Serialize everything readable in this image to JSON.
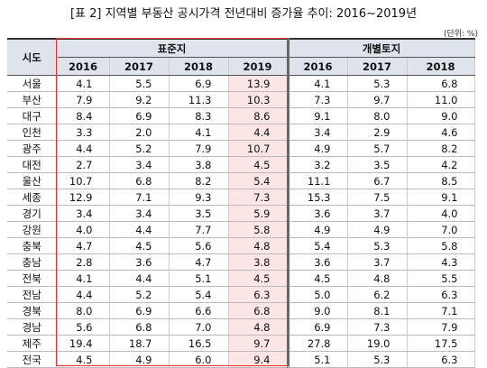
{
  "title": "[표 2] 지역별 부동산 공시가격 전년대비 증가율 추이: 2016~2019년",
  "unit": "(단위: %)",
  "table": {
    "header": {
      "region": "시도",
      "group1": "표준지",
      "group2": "개별토지",
      "years1": [
        "2016",
        "2017",
        "2018",
        "2019"
      ],
      "years2": [
        "2016",
        "2017",
        "2018"
      ]
    },
    "rows": [
      [
        "서울",
        "4.1",
        "5.5",
        "6.9",
        "13.9",
        "4.1",
        "5.3",
        "6.8"
      ],
      [
        "부산",
        "7.9",
        "9.2",
        "11.3",
        "10.3",
        "7.3",
        "9.7",
        "11.0"
      ],
      [
        "대구",
        "8.4",
        "6.9",
        "8.3",
        "8.6",
        "9.1",
        "8.0",
        "9.0"
      ],
      [
        "인천",
        "3.3",
        "2.0",
        "4.1",
        "4.4",
        "3.4",
        "2.9",
        "4.6"
      ],
      [
        "광주",
        "4.4",
        "5.2",
        "7.9",
        "10.7",
        "4.9",
        "5.7",
        "8.2"
      ],
      [
        "대전",
        "2.7",
        "3.4",
        "3.8",
        "4.5",
        "3.2",
        "3.5",
        "4.2"
      ],
      [
        "울산",
        "10.7",
        "6.8",
        "8.2",
        "5.4",
        "11.1",
        "6.7",
        "8.5"
      ],
      [
        "세종",
        "12.9",
        "7.1",
        "9.3",
        "7.3",
        "15.3",
        "7.5",
        "9.1"
      ],
      [
        "경기",
        "3.4",
        "3.4",
        "3.5",
        "5.9",
        "3.6",
        "3.7",
        "4.0"
      ],
      [
        "강원",
        "4.0",
        "4.4",
        "7.7",
        "5.8",
        "4.9",
        "4.9",
        "7.0"
      ],
      [
        "충북",
        "4.7",
        "4.5",
        "5.6",
        "4.8",
        "5.4",
        "5.3",
        "5.8"
      ],
      [
        "충남",
        "2.8",
        "3.6",
        "4.7",
        "3.8",
        "3.6",
        "3.7",
        "4.3"
      ],
      [
        "전북",
        "4.1",
        "4.4",
        "5.1",
        "4.5",
        "4.5",
        "4.8",
        "5.5"
      ],
      [
        "전남",
        "4.4",
        "5.2",
        "5.4",
        "6.3",
        "5.0",
        "6.2",
        "6.3"
      ],
      [
        "경북",
        "8.0",
        "6.9",
        "6.6",
        "6.8",
        "9.0",
        "8.1",
        "7.1"
      ],
      [
        "경남",
        "5.6",
        "6.8",
        "7.0",
        "4.8",
        "6.9",
        "7.3",
        "7.9"
      ],
      [
        "제주",
        "19.4",
        "18.7",
        "16.5",
        "9.7",
        "27.8",
        "19.0",
        "17.5"
      ],
      [
        "전국",
        "4.5",
        "4.9",
        "6.0",
        "9.4",
        "5.1",
        "5.3",
        "6.3"
      ]
    ]
  }
}
